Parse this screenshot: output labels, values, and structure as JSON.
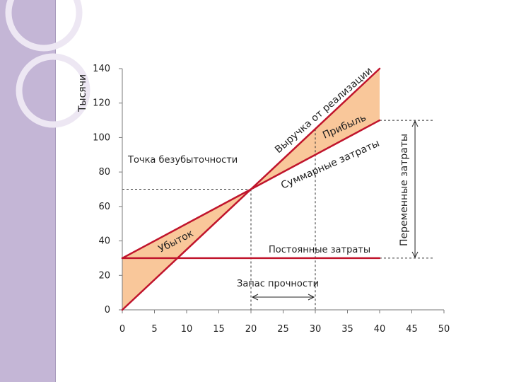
{
  "colors": {
    "sidebar": "#c4b6d6",
    "ring": "#ede7f3",
    "line": "#c0142c",
    "fill": "#f9c79a",
    "axis": "#7a7a7a",
    "text": "#1f1f1f"
  },
  "chart_data": {
    "type": "line",
    "title": "",
    "ylabel": "Тысячи",
    "xlabel": "",
    "xlim": [
      0,
      50
    ],
    "ylim": [
      0,
      140
    ],
    "x_ticks": [
      "0",
      "5",
      "10",
      "15",
      "20",
      "25",
      "30",
      "35",
      "40",
      "45",
      "50"
    ],
    "y_ticks": [
      "0",
      "20",
      "40",
      "60",
      "80",
      "100",
      "120",
      "140"
    ],
    "grid": false,
    "series": [
      {
        "name": "Выручка от реализации",
        "x": [
          0,
          40
        ],
        "y": [
          0,
          140
        ]
      },
      {
        "name": "Суммарные затраты",
        "x": [
          0,
          40
        ],
        "y": [
          30,
          110
        ]
      },
      {
        "name": "Постоянные затраты",
        "x": [
          0,
          40
        ],
        "y": [
          30,
          30
        ]
      }
    ],
    "annotations": {
      "breakeven_label": "Точка безубыточности",
      "breakeven_point": [
        20,
        70
      ],
      "loss_label": "Убыток",
      "profit_label": "Прибыль",
      "safety_margin_label": "Запас прочности",
      "safety_margin_range": [
        20,
        30
      ],
      "variable_costs_label": "Переменные затраты"
    }
  }
}
